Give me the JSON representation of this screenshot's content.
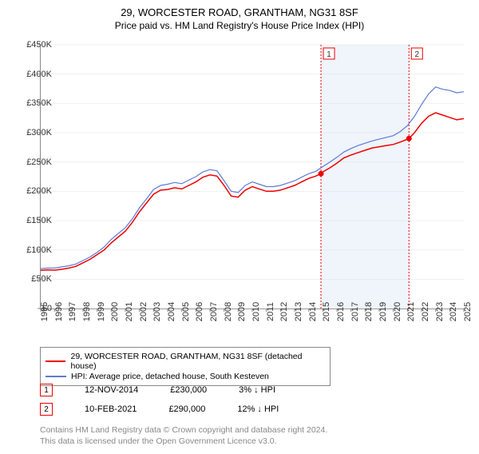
{
  "title": "29, WORCESTER ROAD, GRANTHAM, NG31 8SF",
  "subtitle": "Price paid vs. HM Land Registry's House Price Index (HPI)",
  "chart": {
    "type": "line",
    "ylim": [
      0,
      450000
    ],
    "ytick_step": 50000,
    "ytick_labels": [
      "£0",
      "£50K",
      "£100K",
      "£150K",
      "£200K",
      "£250K",
      "£300K",
      "£350K",
      "£400K",
      "£450K"
    ],
    "xlim": [
      1995,
      2025
    ],
    "xtick_step": 1,
    "xtick_labels": [
      "1995",
      "1996",
      "1997",
      "1998",
      "1999",
      "2000",
      "2001",
      "2002",
      "2003",
      "2004",
      "2005",
      "2006",
      "2007",
      "2008",
      "2009",
      "2010",
      "2011",
      "2012",
      "2013",
      "2014",
      "2015",
      "2016",
      "2017",
      "2018",
      "2019",
      "2020",
      "2021",
      "2022",
      "2023",
      "2024",
      "2025"
    ],
    "background_color": "#ffffff",
    "grid_color": "#e0e0e0",
    "axis_color": "#888888",
    "shaded_regions": [
      {
        "x_start": 2014.87,
        "x_end": 2021.11,
        "color": "#f0f4fb"
      }
    ],
    "markers": [
      {
        "n": "1",
        "x": 2014.87,
        "y": 230000,
        "line_color": "#ee0000",
        "box_border": "#ee0000",
        "box_text": "#333333"
      },
      {
        "n": "2",
        "x": 2021.11,
        "y": 290000,
        "line_color": "#ee0000",
        "box_border": "#ee0000",
        "box_text": "#333333"
      }
    ],
    "series": [
      {
        "name": "price_paid",
        "label": "29, WORCESTER ROAD, GRANTHAM, NG31 8SF (detached house)",
        "color": "#ee0000",
        "line_width": 1.5,
        "data": [
          [
            1995,
            65000
          ],
          [
            1995.5,
            66000
          ],
          [
            1996,
            65500
          ],
          [
            1996.5,
            67000
          ],
          [
            1997,
            69000
          ],
          [
            1997.5,
            72000
          ],
          [
            1998,
            78000
          ],
          [
            1998.5,
            84000
          ],
          [
            1999,
            92000
          ],
          [
            1999.5,
            100000
          ],
          [
            2000,
            112000
          ],
          [
            2000.5,
            122000
          ],
          [
            2001,
            132000
          ],
          [
            2001.5,
            147000
          ],
          [
            2002,
            165000
          ],
          [
            2002.5,
            180000
          ],
          [
            2003,
            195000
          ],
          [
            2003.5,
            202000
          ],
          [
            2004,
            203000
          ],
          [
            2004.5,
            206000
          ],
          [
            2005,
            204000
          ],
          [
            2005.5,
            210000
          ],
          [
            2006,
            216000
          ],
          [
            2006.5,
            224000
          ],
          [
            2007,
            228000
          ],
          [
            2007.5,
            226000
          ],
          [
            2008,
            210000
          ],
          [
            2008.5,
            192000
          ],
          [
            2009,
            190000
          ],
          [
            2009.5,
            202000
          ],
          [
            2010,
            208000
          ],
          [
            2010.5,
            204000
          ],
          [
            2011,
            200000
          ],
          [
            2011.5,
            200000
          ],
          [
            2012,
            202000
          ],
          [
            2012.5,
            206000
          ],
          [
            2013,
            210000
          ],
          [
            2013.5,
            216000
          ],
          [
            2014,
            222000
          ],
          [
            2014.5,
            226000
          ],
          [
            2014.87,
            230000
          ],
          [
            2015,
            233000
          ],
          [
            2015.5,
            240000
          ],
          [
            2016,
            248000
          ],
          [
            2016.5,
            257000
          ],
          [
            2017,
            262000
          ],
          [
            2017.5,
            266000
          ],
          [
            2018,
            270000
          ],
          [
            2018.5,
            274000
          ],
          [
            2019,
            276000
          ],
          [
            2019.5,
            278000
          ],
          [
            2020,
            280000
          ],
          [
            2020.5,
            284000
          ],
          [
            2021.11,
            290000
          ],
          [
            2021.5,
            300000
          ],
          [
            2022,
            316000
          ],
          [
            2022.5,
            328000
          ],
          [
            2023,
            334000
          ],
          [
            2023.5,
            330000
          ],
          [
            2024,
            326000
          ],
          [
            2024.5,
            322000
          ],
          [
            2025,
            324000
          ]
        ]
      },
      {
        "name": "hpi",
        "label": "HPI: Average price, detached house, South Kesteven",
        "color": "#5b7bd5",
        "line_width": 1.2,
        "data": [
          [
            1995,
            68000
          ],
          [
            1995.5,
            69000
          ],
          [
            1996,
            69000
          ],
          [
            1996.5,
            71000
          ],
          [
            1997,
            73000
          ],
          [
            1997.5,
            76000
          ],
          [
            1998,
            82000
          ],
          [
            1998.5,
            88000
          ],
          [
            1999,
            96000
          ],
          [
            1999.5,
            105000
          ],
          [
            2000,
            118000
          ],
          [
            2000.5,
            128000
          ],
          [
            2001,
            138000
          ],
          [
            2001.5,
            153000
          ],
          [
            2002,
            172000
          ],
          [
            2002.5,
            187000
          ],
          [
            2003,
            203000
          ],
          [
            2003.5,
            210000
          ],
          [
            2004,
            212000
          ],
          [
            2004.5,
            215000
          ],
          [
            2005,
            213000
          ],
          [
            2005.5,
            219000
          ],
          [
            2006,
            225000
          ],
          [
            2006.5,
            233000
          ],
          [
            2007,
            237000
          ],
          [
            2007.5,
            235000
          ],
          [
            2008,
            218000
          ],
          [
            2008.5,
            200000
          ],
          [
            2009,
            198000
          ],
          [
            2009.5,
            210000
          ],
          [
            2010,
            216000
          ],
          [
            2010.5,
            212000
          ],
          [
            2011,
            208000
          ],
          [
            2011.5,
            208000
          ],
          [
            2012,
            210000
          ],
          [
            2012.5,
            214000
          ],
          [
            2013,
            218000
          ],
          [
            2013.5,
            224000
          ],
          [
            2014,
            230000
          ],
          [
            2014.5,
            234000
          ],
          [
            2015,
            242000
          ],
          [
            2015.5,
            250000
          ],
          [
            2016,
            258000
          ],
          [
            2016.5,
            267000
          ],
          [
            2017,
            273000
          ],
          [
            2017.5,
            278000
          ],
          [
            2018,
            282000
          ],
          [
            2018.5,
            286000
          ],
          [
            2019,
            289000
          ],
          [
            2019.5,
            292000
          ],
          [
            2020,
            295000
          ],
          [
            2020.5,
            302000
          ],
          [
            2021,
            312000
          ],
          [
            2021.5,
            328000
          ],
          [
            2022,
            348000
          ],
          [
            2022.5,
            366000
          ],
          [
            2023,
            378000
          ],
          [
            2023.5,
            374000
          ],
          [
            2024,
            372000
          ],
          [
            2024.5,
            368000
          ],
          [
            2025,
            370000
          ]
        ]
      }
    ]
  },
  "legend": {
    "items": [
      {
        "color": "#ee0000",
        "label": "29, WORCESTER ROAD, GRANTHAM, NG31 8SF (detached house)"
      },
      {
        "color": "#5b7bd5",
        "label": "HPI: Average price, detached house, South Kesteven"
      }
    ]
  },
  "transactions": [
    {
      "n": "1",
      "date": "12-NOV-2014",
      "price": "£230,000",
      "change": "3% ↓ HPI",
      "box_border": "#ee0000"
    },
    {
      "n": "2",
      "date": "10-FEB-2021",
      "price": "£290,000",
      "change": "12% ↓ HPI",
      "box_border": "#ee0000"
    }
  ],
  "footer": {
    "line1": "Contains HM Land Registry data © Crown copyright and database right 2024.",
    "line2": "This data is licensed under the Open Government Licence v3.0."
  }
}
